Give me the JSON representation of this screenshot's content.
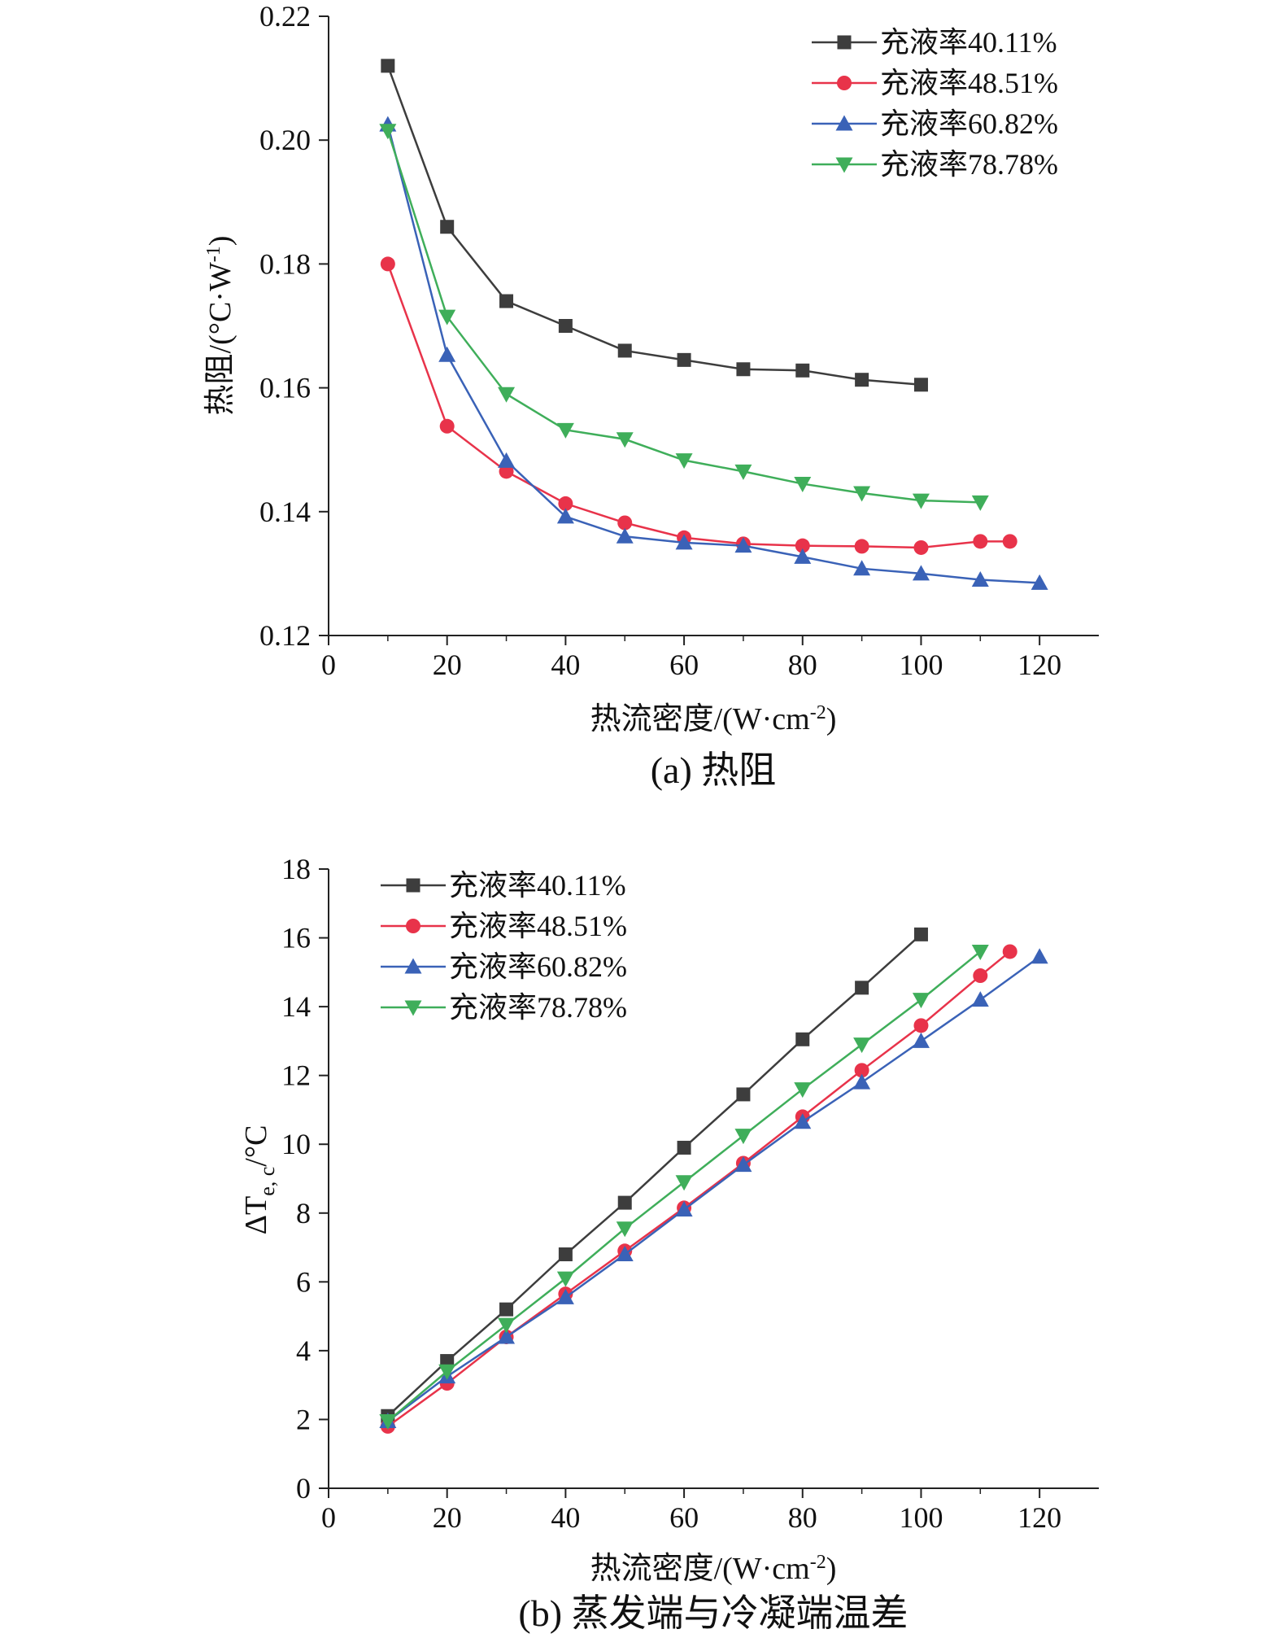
{
  "chart_data": [
    {
      "id": "a",
      "type": "line",
      "title": "(a)  热阻",
      "xlabel": "热流密度/(W·cm",
      "xlabel_sup": "-2",
      "xlabel_suffix": ")",
      "ylabel": "热阻/(°C·W",
      "ylabel_sup": "-1",
      "ylabel_suffix": ")",
      "xlim": [
        0,
        130
      ],
      "ylim": [
        0.12,
        0.22
      ],
      "xticks": [
        "0",
        "20",
        "40",
        "60",
        "80",
        "100",
        "120"
      ],
      "xtick_values": [
        0,
        20,
        40,
        60,
        80,
        100,
        120
      ],
      "yticks": [
        "0.12",
        "0.14",
        "0.16",
        "0.18",
        "0.20",
        "0.22"
      ],
      "ytick_values": [
        0.12,
        0.14,
        0.16,
        0.18,
        0.2,
        0.22
      ],
      "legend_position": "top-right",
      "grid": false,
      "series": [
        {
          "name": "充液率40.11%",
          "color": "#3d3d3d",
          "marker": "square",
          "x": [
            10,
            20,
            30,
            40,
            50,
            60,
            70,
            80,
            90,
            100
          ],
          "y": [
            0.212,
            0.186,
            0.174,
            0.17,
            0.166,
            0.1645,
            0.163,
            0.1628,
            0.1613,
            0.1605
          ]
        },
        {
          "name": "充液率48.51%",
          "color": "#e8334a",
          "marker": "circle",
          "x": [
            10,
            20,
            30,
            40,
            50,
            60,
            70,
            80,
            90,
            100,
            110,
            115
          ],
          "y": [
            0.18,
            0.1538,
            0.1465,
            0.1413,
            0.1382,
            0.1358,
            0.1348,
            0.1345,
            0.1344,
            0.1342,
            0.1352,
            0.1352
          ]
        },
        {
          "name": "充液率60.82%",
          "color": "#3a62b7",
          "marker": "triangle-up",
          "x": [
            10,
            20,
            30,
            40,
            50,
            60,
            70,
            80,
            90,
            100,
            110,
            120
          ],
          "y": [
            0.2025,
            0.1653,
            0.1482,
            0.1392,
            0.136,
            0.135,
            0.1345,
            0.1327,
            0.1308,
            0.13,
            0.129,
            0.1285
          ]
        },
        {
          "name": "充液率78.78%",
          "color": "#3fae5a",
          "marker": "triangle-down",
          "x": [
            10,
            20,
            30,
            40,
            50,
            60,
            70,
            80,
            90,
            100,
            110
          ],
          "y": [
            0.2015,
            0.1715,
            0.159,
            0.1532,
            0.1517,
            0.1483,
            0.1465,
            0.1445,
            0.143,
            0.1418,
            0.1415
          ]
        }
      ]
    },
    {
      "id": "b",
      "type": "line",
      "title": "(b)  蒸发端与冷凝端温差",
      "xlabel": "热流密度/(W·cm",
      "xlabel_sup": "-2",
      "xlabel_suffix": ")",
      "ylabel": "ΔT",
      "ylabel_sub": "e, c",
      "ylabel_suffix": "/°C",
      "xlim": [
        0,
        130
      ],
      "ylim": [
        0,
        18
      ],
      "xticks": [
        "0",
        "20",
        "40",
        "60",
        "80",
        "100",
        "120"
      ],
      "xtick_values": [
        0,
        20,
        40,
        60,
        80,
        100,
        120
      ],
      "yticks": [
        "0",
        "2",
        "4",
        "6",
        "8",
        "10",
        "12",
        "14",
        "16",
        "18"
      ],
      "ytick_values": [
        0,
        2,
        4,
        6,
        8,
        10,
        12,
        14,
        16,
        18
      ],
      "legend_position": "top-left",
      "grid": false,
      "series": [
        {
          "name": "充液率40.11%",
          "color": "#3d3d3d",
          "marker": "square",
          "x": [
            10,
            20,
            30,
            40,
            50,
            60,
            70,
            80,
            90,
            100
          ],
          "y": [
            2.1,
            3.7,
            5.2,
            6.8,
            8.3,
            9.9,
            11.45,
            13.05,
            14.55,
            16.1
          ]
        },
        {
          "name": "充液率48.51%",
          "color": "#e8334a",
          "marker": "circle",
          "x": [
            10,
            20,
            30,
            40,
            50,
            60,
            70,
            80,
            90,
            100,
            110,
            115
          ],
          "y": [
            1.8,
            3.05,
            4.4,
            5.65,
            6.9,
            8.15,
            9.45,
            10.8,
            12.15,
            13.45,
            14.9,
            15.6
          ]
        },
        {
          "name": "充液率60.82%",
          "color": "#3a62b7",
          "marker": "triangle-up",
          "x": [
            10,
            20,
            30,
            40,
            50,
            60,
            70,
            80,
            90,
            100,
            110,
            120
          ],
          "y": [
            1.95,
            3.25,
            4.4,
            5.55,
            6.8,
            8.1,
            9.4,
            10.65,
            11.8,
            13.0,
            14.2,
            15.45
          ]
        },
        {
          "name": "充液率78.78%",
          "color": "#3fae5a",
          "marker": "triangle-down",
          "x": [
            10,
            20,
            30,
            40,
            50,
            60,
            70,
            80,
            90,
            100,
            110
          ],
          "y": [
            1.95,
            3.4,
            4.75,
            6.1,
            7.55,
            8.9,
            10.25,
            11.6,
            12.9,
            14.2,
            15.6
          ]
        }
      ]
    }
  ]
}
